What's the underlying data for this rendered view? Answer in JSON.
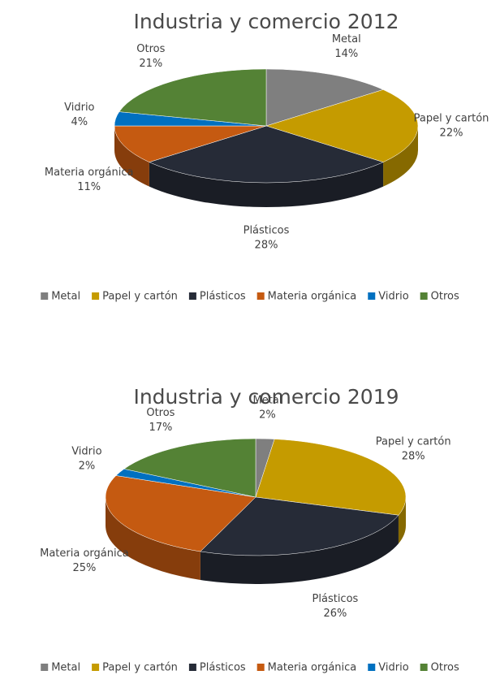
{
  "chart_data": [
    {
      "type": "pie",
      "title": "Industria y comercio 2012",
      "categories": [
        "Metal",
        "Papel y cartón",
        "Plásticos",
        "Materia orgánica",
        "Vidrio",
        "Otros"
      ],
      "values": [
        14,
        22,
        28,
        11,
        4,
        21
      ],
      "value_labels": [
        "14%",
        "22%",
        "28%",
        "11%",
        "4%",
        "21%"
      ],
      "colors": [
        "#7f7f7f",
        "#c59b00",
        "#262b37",
        "#c55a11",
        "#0070c0",
        "#548235"
      ],
      "legend": "bottom"
    },
    {
      "type": "pie",
      "title": "Industria y comercio 2019",
      "categories": [
        "Metal",
        "Papel y cartón",
        "Plásticos",
        "Materia orgánica",
        "Vidrio",
        "Otros"
      ],
      "values": [
        2,
        28,
        26,
        25,
        2,
        17
      ],
      "value_labels": [
        "2%",
        "28%",
        "26%",
        "25%",
        "2%",
        "17%"
      ],
      "colors": [
        "#7f7f7f",
        "#c59b00",
        "#262b37",
        "#c55a11",
        "#0070c0",
        "#548235"
      ],
      "legend": "bottom"
    }
  ]
}
